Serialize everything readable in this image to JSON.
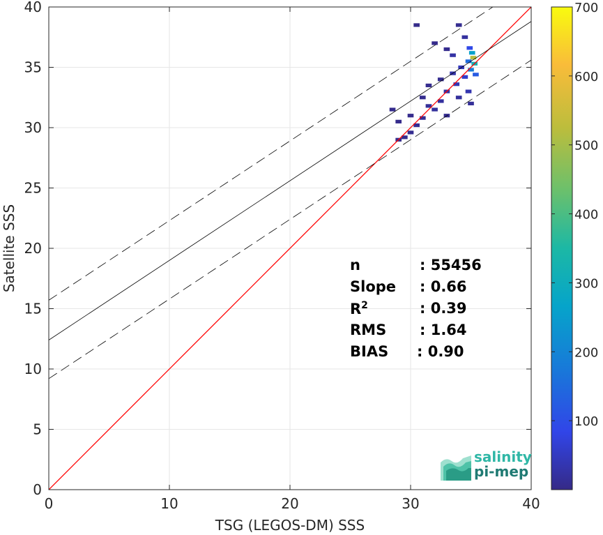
{
  "chart_data": {
    "type": "heatmap",
    "xlabel": "TSG (LEGOS-DM) SSS",
    "ylabel": "Satellite SSS",
    "xlim": [
      0,
      40
    ],
    "ylim": [
      0,
      40
    ],
    "xticks": [
      "0",
      "10",
      "20",
      "30",
      "40"
    ],
    "yticks": [
      "0",
      "5",
      "10",
      "15",
      "20",
      "25",
      "30",
      "35",
      "40"
    ],
    "grid": true,
    "colorbar": {
      "min": 0,
      "max": 700,
      "ticks": [
        "100",
        "200",
        "300",
        "400",
        "500",
        "600",
        "700"
      ],
      "colormap": "parula"
    },
    "lines": [
      {
        "kind": "one-to-one",
        "color": "#ff0000",
        "x": [
          0,
          40
        ],
        "y": [
          0,
          40
        ]
      },
      {
        "kind": "regression",
        "color": "#000000",
        "style": "solid",
        "x": [
          0,
          40
        ],
        "y": [
          12.4,
          38.8
        ]
      },
      {
        "kind": "regression-upper",
        "color": "#000000",
        "style": "dashed",
        "x": [
          0,
          40
        ],
        "y": [
          15.7,
          42.1
        ]
      },
      {
        "kind": "regression-lower",
        "color": "#000000",
        "style": "dashed",
        "x": [
          0,
          40
        ],
        "y": [
          9.2,
          35.6
        ]
      }
    ],
    "density_cells": [
      {
        "x": 35.2,
        "y": 35.8,
        "count": 520
      },
      {
        "x": 35.3,
        "y": 35.3,
        "count": 320
      },
      {
        "x": 35.1,
        "y": 36.2,
        "count": 260
      },
      {
        "x": 35.0,
        "y": 34.8,
        "count": 180
      },
      {
        "x": 34.8,
        "y": 35.5,
        "count": 150
      },
      {
        "x": 35.4,
        "y": 34.4,
        "count": 120
      },
      {
        "x": 34.9,
        "y": 36.6,
        "count": 90
      },
      {
        "x": 34.5,
        "y": 34.2,
        "count": 60
      },
      {
        "x": 34.2,
        "y": 35.0,
        "count": 45
      },
      {
        "x": 33.8,
        "y": 33.6,
        "count": 40
      },
      {
        "x": 33.5,
        "y": 34.5,
        "count": 30
      },
      {
        "x": 33.0,
        "y": 33.0,
        "count": 25
      },
      {
        "x": 32.5,
        "y": 32.2,
        "count": 20
      },
      {
        "x": 32.0,
        "y": 31.5,
        "count": 18
      },
      {
        "x": 31.5,
        "y": 31.8,
        "count": 15
      },
      {
        "x": 31.0,
        "y": 30.8,
        "count": 12
      },
      {
        "x": 30.5,
        "y": 30.2,
        "count": 10
      },
      {
        "x": 30.0,
        "y": 29.6,
        "count": 8
      },
      {
        "x": 29.5,
        "y": 29.2,
        "count": 6
      },
      {
        "x": 29.0,
        "y": 29.0,
        "count": 5
      },
      {
        "x": 28.5,
        "y": 31.5,
        "count": 4
      },
      {
        "x": 29.0,
        "y": 30.5,
        "count": 4
      },
      {
        "x": 31.5,
        "y": 33.5,
        "count": 6
      },
      {
        "x": 32.5,
        "y": 34.0,
        "count": 8
      },
      {
        "x": 33.0,
        "y": 36.5,
        "count": 6
      },
      {
        "x": 32.0,
        "y": 37.0,
        "count": 4
      },
      {
        "x": 30.5,
        "y": 38.5,
        "count": 3
      },
      {
        "x": 34.0,
        "y": 38.5,
        "count": 8
      },
      {
        "x": 34.5,
        "y": 37.5,
        "count": 20
      },
      {
        "x": 33.5,
        "y": 36.0,
        "count": 25
      },
      {
        "x": 34.8,
        "y": 33.0,
        "count": 35
      },
      {
        "x": 35.0,
        "y": 32.0,
        "count": 15
      },
      {
        "x": 34.0,
        "y": 32.5,
        "count": 18
      },
      {
        "x": 33.0,
        "y": 31.0,
        "count": 8
      },
      {
        "x": 31.0,
        "y": 32.5,
        "count": 7
      },
      {
        "x": 30.0,
        "y": 31.0,
        "count": 5
      }
    ]
  },
  "stats": [
    {
      "key": "n",
      "value": ": 55456"
    },
    {
      "key": "Slope",
      "value": ": 0.66"
    },
    {
      "key": "R",
      "sup": "2",
      "value": ": 0.39"
    },
    {
      "key": "RMS",
      "value": ": 1.64"
    },
    {
      "key": "BIAS",
      "value": ": 0.90"
    }
  ],
  "logo": {
    "line1": "salinity",
    "line2": "pi-mep"
  }
}
